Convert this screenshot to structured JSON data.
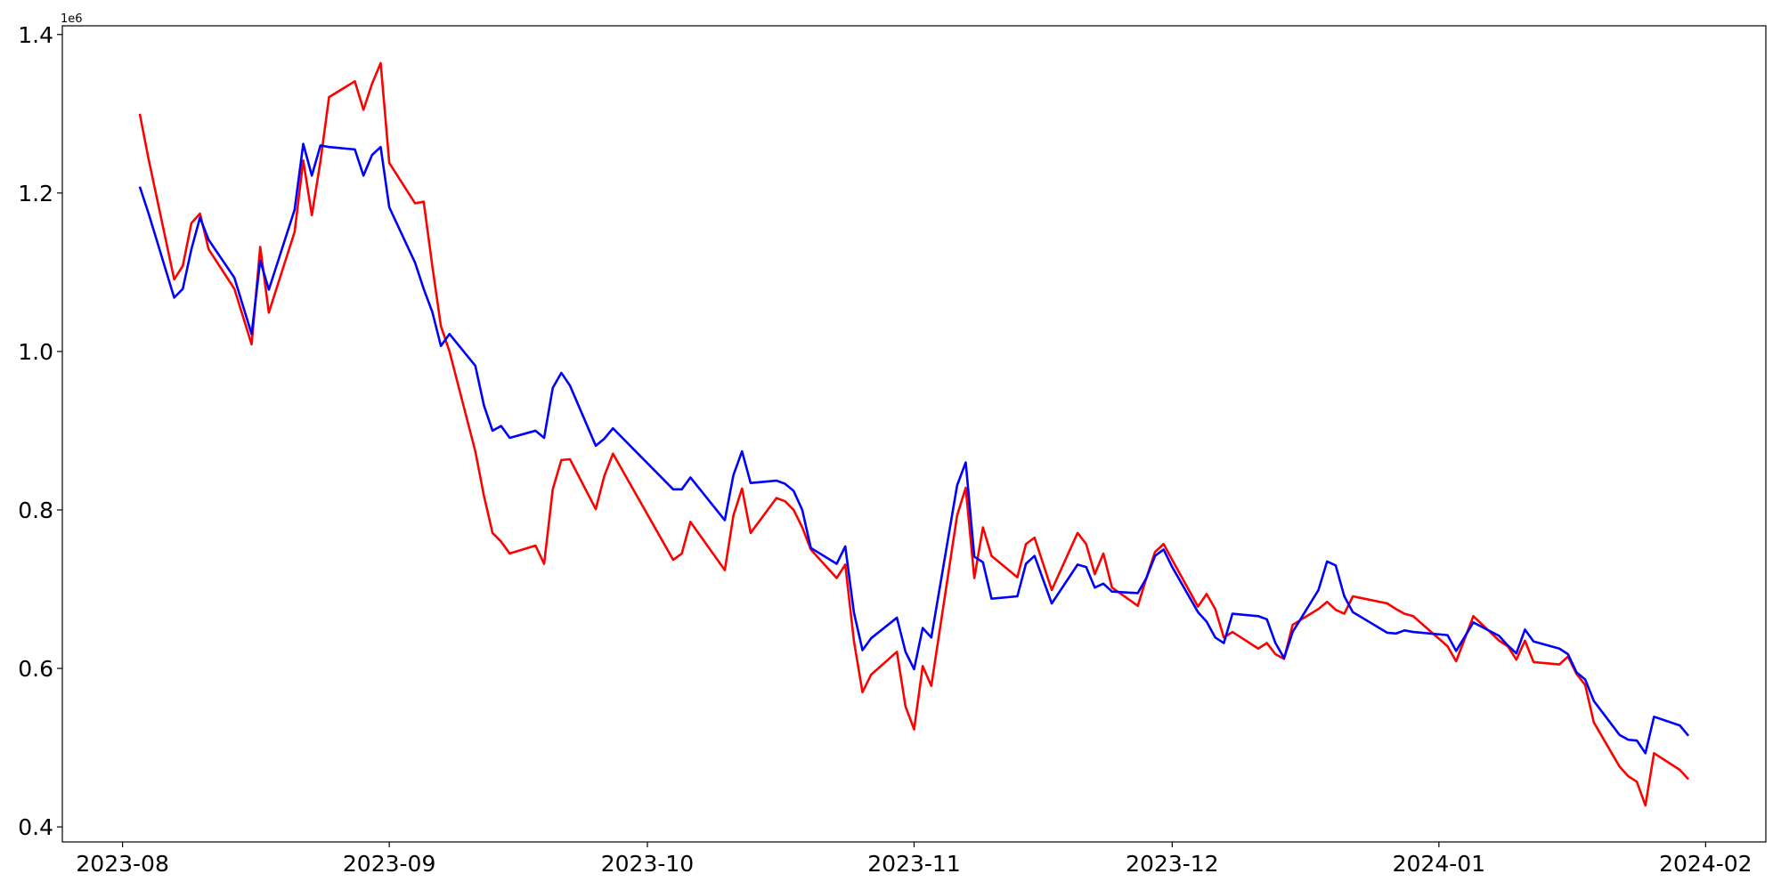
{
  "chart_data": {
    "type": "line",
    "offset_text": "1e6",
    "x": [
      "2023-08-03",
      "2023-08-04",
      "2023-08-07",
      "2023-08-08",
      "2023-08-09",
      "2023-08-10",
      "2023-08-11",
      "2023-08-14",
      "2023-08-16",
      "2023-08-17",
      "2023-08-18",
      "2023-08-21",
      "2023-08-22",
      "2023-08-23",
      "2023-08-24",
      "2023-08-25",
      "2023-08-28",
      "2023-08-29",
      "2023-08-30",
      "2023-08-31",
      "2023-09-01",
      "2023-09-04",
      "2023-09-05",
      "2023-09-06",
      "2023-09-07",
      "2023-09-08",
      "2023-09-11",
      "2023-09-12",
      "2023-09-13",
      "2023-09-14",
      "2023-09-15",
      "2023-09-18",
      "2023-09-19",
      "2023-09-20",
      "2023-09-21",
      "2023-09-22",
      "2023-09-25",
      "2023-09-26",
      "2023-09-27",
      "2023-10-04",
      "2023-10-05",
      "2023-10-06",
      "2023-10-10",
      "2023-10-11",
      "2023-10-12",
      "2023-10-13",
      "2023-10-16",
      "2023-10-17",
      "2023-10-18",
      "2023-10-19",
      "2023-10-20",
      "2023-10-23",
      "2023-10-24",
      "2023-10-25",
      "2023-10-26",
      "2023-10-27",
      "2023-10-30",
      "2023-10-31",
      "2023-11-01",
      "2023-11-02",
      "2023-11-03",
      "2023-11-06",
      "2023-11-07",
      "2023-11-08",
      "2023-11-09",
      "2023-11-10",
      "2023-11-13",
      "2023-11-14",
      "2023-11-15",
      "2023-11-17",
      "2023-11-20",
      "2023-11-21",
      "2023-11-22",
      "2023-11-23",
      "2023-11-24",
      "2023-11-27",
      "2023-11-28",
      "2023-11-29",
      "2023-11-30",
      "2023-12-01",
      "2023-12-04",
      "2023-12-05",
      "2023-12-06",
      "2023-12-07",
      "2023-12-08",
      "2023-12-11",
      "2023-12-12",
      "2023-12-13",
      "2023-12-14",
      "2023-12-15",
      "2023-12-18",
      "2023-12-19",
      "2023-12-20",
      "2023-12-21",
      "2023-12-22",
      "2023-12-26",
      "2023-12-27",
      "2023-12-28",
      "2023-12-29",
      "2024-01-02",
      "2024-01-03",
      "2024-01-05",
      "2024-01-08",
      "2024-01-09",
      "2024-01-10",
      "2024-01-11",
      "2024-01-12",
      "2024-01-15",
      "2024-01-16",
      "2024-01-17",
      "2024-01-18",
      "2024-01-19",
      "2024-01-22",
      "2024-01-23",
      "2024-01-24",
      "2024-01-25",
      "2024-01-26",
      "2024-01-29",
      "2024-01-30"
    ],
    "series": [
      {
        "color": "#ff0000",
        "values": [
          1.3,
          1.244,
          1.091,
          1.108,
          1.162,
          1.174,
          1.129,
          1.079,
          1.009,
          1.132,
          1.049,
          1.151,
          1.241,
          1.172,
          1.24,
          1.321,
          1.341,
          1.305,
          1.338,
          1.364,
          1.238,
          1.187,
          1.189,
          1.108,
          1.032,
          1.0,
          0.874,
          0.818,
          0.771,
          0.76,
          0.745,
          0.755,
          0.732,
          0.826,
          0.863,
          0.864,
          0.801,
          0.843,
          0.871,
          0.737,
          0.745,
          0.785,
          0.724,
          0.793,
          0.827,
          0.771,
          0.815,
          0.811,
          0.8,
          0.778,
          0.75,
          0.714,
          0.731,
          0.635,
          0.57,
          0.592,
          0.621,
          0.552,
          0.523,
          0.603,
          0.578,
          0.793,
          0.828,
          0.714,
          0.778,
          0.742,
          0.715,
          0.757,
          0.765,
          0.699,
          0.771,
          0.757,
          0.719,
          0.745,
          0.702,
          0.679,
          0.714,
          0.747,
          0.757,
          0.737,
          0.678,
          0.694,
          0.675,
          0.639,
          0.646,
          0.625,
          0.632,
          0.618,
          0.612,
          0.655,
          0.675,
          0.684,
          0.674,
          0.669,
          0.691,
          0.682,
          0.675,
          0.669,
          0.666,
          0.628,
          0.609,
          0.666,
          0.635,
          0.628,
          0.611,
          0.635,
          0.608,
          0.605,
          0.615,
          0.593,
          0.579,
          0.532,
          0.476,
          0.464,
          0.457,
          0.427,
          0.493,
          0.472,
          0.46
        ]
      },
      {
        "color": "#0000ff",
        "values": [
          1.208,
          1.175,
          1.068,
          1.079,
          1.129,
          1.169,
          1.141,
          1.093,
          1.022,
          1.115,
          1.078,
          1.179,
          1.262,
          1.222,
          1.26,
          1.258,
          1.255,
          1.222,
          1.248,
          1.258,
          1.182,
          1.112,
          1.079,
          1.05,
          1.007,
          1.022,
          0.982,
          0.932,
          0.9,
          0.906,
          0.891,
          0.9,
          0.891,
          0.954,
          0.973,
          0.957,
          0.881,
          0.89,
          0.903,
          0.826,
          0.826,
          0.841,
          0.787,
          0.844,
          0.874,
          0.834,
          0.837,
          0.833,
          0.824,
          0.8,
          0.752,
          0.732,
          0.754,
          0.671,
          0.623,
          0.638,
          0.664,
          0.621,
          0.599,
          0.651,
          0.639,
          0.831,
          0.86,
          0.741,
          0.734,
          0.688,
          0.691,
          0.732,
          0.742,
          0.682,
          0.731,
          0.728,
          0.702,
          0.707,
          0.697,
          0.695,
          0.714,
          0.742,
          0.75,
          0.728,
          0.671,
          0.659,
          0.639,
          0.632,
          0.669,
          0.666,
          0.662,
          0.632,
          0.613,
          0.646,
          0.699,
          0.735,
          0.73,
          0.691,
          0.671,
          0.645,
          0.644,
          0.648,
          0.646,
          0.642,
          0.622,
          0.658,
          0.641,
          0.629,
          0.619,
          0.649,
          0.634,
          0.625,
          0.618,
          0.595,
          0.586,
          0.559,
          0.516,
          0.51,
          0.509,
          0.493,
          0.539,
          0.528,
          0.515
        ]
      }
    ],
    "xlim": [
      "2023-07-25",
      "2024-02-08"
    ],
    "xticks": [
      {
        "value": "2023-08-01",
        "label": "2023-08"
      },
      {
        "value": "2023-09-01",
        "label": "2023-09"
      },
      {
        "value": "2023-10-01",
        "label": "2023-10"
      },
      {
        "value": "2023-11-01",
        "label": "2023-11"
      },
      {
        "value": "2023-12-01",
        "label": "2023-12"
      },
      {
        "value": "2024-01-01",
        "label": "2024-01"
      },
      {
        "value": "2024-02-01",
        "label": "2024-02"
      }
    ],
    "ylim": [
      0.381,
      1.411
    ],
    "yticks": [
      0.4,
      0.6,
      0.8,
      {
        "value": 1,
        "label": "1.0"
      },
      1.2,
      1.4
    ],
    "grid": false
  }
}
